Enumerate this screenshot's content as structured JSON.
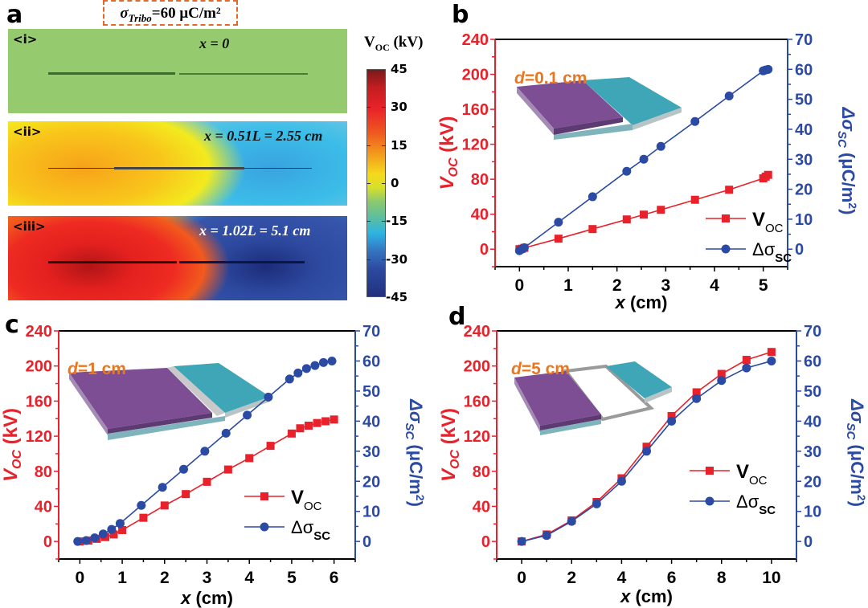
{
  "panel_a": {
    "letter": "a",
    "header_sigma": "σ",
    "header_sub": "Tribo",
    "header_value": "=60 μC/m²",
    "maps": [
      {
        "label": "<i>",
        "x_text": "x = 0",
        "state": "uniform"
      },
      {
        "label": "<ii>",
        "x_text": "x = 0.51L = 2.55 cm",
        "state": "partial"
      },
      {
        "label": "<iii>",
        "x_text": "x = 1.02L = 5.1 cm",
        "state": "full"
      }
    ],
    "colorbar": {
      "title_main": "V",
      "title_sub": "OC",
      "title_unit": " (kV)",
      "ticks": [
        "45",
        "30",
        "15",
        "0",
        "-15",
        "-30",
        "-45"
      ],
      "range": [
        -45,
        45
      ]
    }
  },
  "colors": {
    "voc": "#e8212a",
    "sigma": "#2b4aa3",
    "d_label": "#e87722",
    "purple": "#7d4e94",
    "teal": "#3ea6b6"
  },
  "chart_data": [
    {
      "panel": "b",
      "type": "line",
      "d_label_var": "d",
      "d_label_value": "=0.1 cm",
      "xlabel": "x",
      "xlabel_unit": " (cm)",
      "ylabel_left": "V",
      "ylabel_left_sub": "OC",
      "ylabel_left_unit": " (kV)",
      "ylabel_right": "Δσ",
      "ylabel_right_sub": "SC",
      "ylabel_right_unit": " (μC/m",
      "ylabel_right_sup": "2",
      "ylabel_right_close": ")",
      "xlim": [
        -0.5,
        5.5
      ],
      "xticks": [
        0,
        1,
        2,
        3,
        4,
        5
      ],
      "ylim_left": [
        -20,
        240
      ],
      "yticks_left": [
        0,
        40,
        80,
        120,
        160,
        200,
        240
      ],
      "ylim_right": [
        -5.83,
        70
      ],
      "yticks_right": [
        0,
        10,
        20,
        30,
        40,
        50,
        60,
        70
      ],
      "legend": [
        "V_OC",
        "Δσ_SC"
      ],
      "legend_position": "bottom-right",
      "series": [
        {
          "name": "V_OC",
          "axis": "left",
          "marker": "square",
          "x": [
            0,
            0.05,
            0.1,
            0.8,
            1.5,
            2.2,
            2.55,
            2.9,
            3.6,
            4.3,
            5.0,
            5.05,
            5.1
          ],
          "y": [
            0,
            0.5,
            1.5,
            12,
            23,
            34,
            39.5,
            45,
            56.5,
            68,
            81,
            83,
            85
          ]
        },
        {
          "name": "Δσ_SC",
          "axis": "right",
          "marker": "circle",
          "x": [
            0,
            0.05,
            0.1,
            0.8,
            1.5,
            2.2,
            2.55,
            2.9,
            3.6,
            4.3,
            5.0,
            5.05,
            5.1
          ],
          "y": [
            -0.5,
            0,
            0.5,
            9,
            17.5,
            26,
            30,
            34.3,
            42.6,
            51.1,
            59.5,
            59.8,
            60
          ]
        }
      ]
    },
    {
      "panel": "c",
      "type": "line",
      "d_label_var": "d",
      "d_label_value": "=1 cm",
      "xlabel": "x",
      "xlabel_unit": " (cm)",
      "ylabel_left": "V",
      "ylabel_left_sub": "OC",
      "ylabel_left_unit": " (kV)",
      "ylabel_right": "Δσ",
      "ylabel_right_sub": "SC",
      "ylabel_right_unit": " (μC/m",
      "ylabel_right_sup": "2",
      "ylabel_right_close": ")",
      "xlim": [
        -0.5,
        6.5
      ],
      "xticks": [
        0,
        1,
        2,
        3,
        4,
        5,
        6
      ],
      "ylim_left": [
        -20,
        240
      ],
      "yticks_left": [
        0,
        40,
        80,
        120,
        160,
        200,
        240
      ],
      "ylim_right": [
        -5.83,
        70
      ],
      "yticks_right": [
        0,
        10,
        20,
        30,
        40,
        50,
        60,
        70
      ],
      "legend": [
        "V_OC",
        "Δσ_SC"
      ],
      "legend_position": "bottom-right",
      "series": [
        {
          "name": "V_OC",
          "axis": "left",
          "marker": "square",
          "x": [
            0,
            0.2,
            0.4,
            0.6,
            0.8,
            1.0,
            1.5,
            2.0,
            2.5,
            3.0,
            3.5,
            4.0,
            4.5,
            5.0,
            5.2,
            5.4,
            5.6,
            5.8,
            6.0
          ],
          "y": [
            0,
            1,
            3,
            5,
            8,
            13,
            27,
            41,
            54,
            68,
            82,
            95,
            109,
            123,
            129,
            132,
            135,
            137,
            139
          ]
        },
        {
          "name": "Δσ_SC",
          "axis": "right",
          "marker": "circle",
          "x": [
            -0.05,
            0.15,
            0.35,
            0.55,
            0.75,
            0.95,
            1.45,
            1.95,
            2.45,
            2.95,
            3.45,
            3.95,
            4.45,
            4.95,
            5.15,
            5.35,
            5.55,
            5.75,
            5.95
          ],
          "y": [
            0,
            0.3,
            1.2,
            2.5,
            4,
            6,
            12,
            18,
            24,
            30,
            36,
            42,
            48,
            54,
            56,
            57.5,
            58.5,
            59.5,
            60
          ]
        }
      ]
    },
    {
      "panel": "d",
      "type": "line",
      "d_label_var": "d",
      "d_label_value": "=5 cm",
      "xlabel": "x",
      "xlabel_unit": " (cm)",
      "ylabel_left": "V",
      "ylabel_left_sub": "OC",
      "ylabel_left_unit": " (kV)",
      "ylabel_right": "Δσ",
      "ylabel_right_sub": "SC",
      "ylabel_right_unit": " (μC/m",
      "ylabel_right_sup": "2",
      "ylabel_right_close": ")",
      "xlim": [
        -1,
        11
      ],
      "xticks": [
        0,
        2,
        4,
        6,
        8,
        10
      ],
      "ylim_left": [
        -20,
        240
      ],
      "yticks_left": [
        0,
        40,
        80,
        120,
        160,
        200,
        240
      ],
      "ylim_right": [
        -5.83,
        70
      ],
      "yticks_right": [
        0,
        10,
        20,
        30,
        40,
        50,
        60,
        70
      ],
      "legend": [
        "V_OC",
        "Δσ_SC"
      ],
      "legend_position": "center-right",
      "series": [
        {
          "name": "V_OC",
          "axis": "left",
          "marker": "square",
          "x": [
            0,
            1,
            2,
            3,
            4,
            5,
            6,
            7,
            8,
            9,
            10
          ],
          "y": [
            0,
            8,
            24,
            45,
            72,
            108,
            143,
            170,
            191,
            207,
            216
          ]
        },
        {
          "name": "Δσ_SC",
          "axis": "right",
          "marker": "circle",
          "x": [
            0,
            1,
            2,
            3,
            4,
            5,
            6,
            7,
            8,
            9,
            10
          ],
          "y": [
            0,
            2,
            6.7,
            12.5,
            20,
            30,
            40,
            47.5,
            53.5,
            57.7,
            60
          ]
        }
      ]
    }
  ],
  "panel_letters": {
    "b": "b",
    "c": "c",
    "d": "d"
  }
}
